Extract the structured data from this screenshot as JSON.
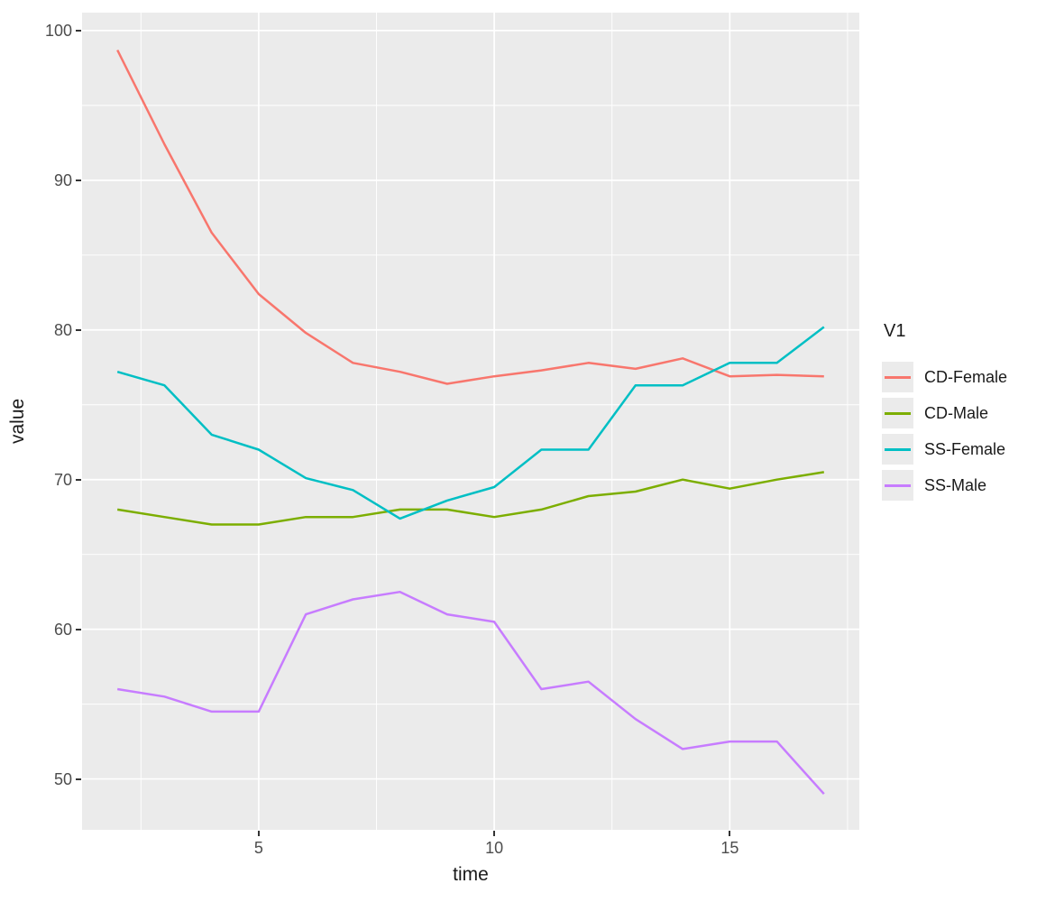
{
  "figure": {
    "background": "#FFFFFF",
    "panel_background": "#EBEBEB",
    "grid_color": "#FFFFFF",
    "axis_text_color": "#4D4D4D",
    "axis_title_color": "#1A1A1A",
    "tick_mark_color": "#333333"
  },
  "chart_data": {
    "type": "line",
    "title": "",
    "xlabel": "time",
    "ylabel": "value",
    "grid": true,
    "legend": {
      "title": "V1",
      "position": "right"
    },
    "x": [
      2,
      3,
      4,
      5,
      6,
      7,
      8,
      9,
      10,
      11,
      12,
      13,
      14,
      15,
      16,
      17
    ],
    "xlim": [
      1.25,
      17.75
    ],
    "ylim": [
      46.6,
      101.2
    ],
    "x_major_ticks": [
      5,
      10,
      15
    ],
    "x_minor_ticks": [
      2.5,
      7.5,
      12.5,
      17.5
    ],
    "y_major_ticks": [
      50,
      60,
      70,
      80,
      90,
      100
    ],
    "y_minor_ticks": [
      55,
      65,
      75,
      85,
      95
    ],
    "series": [
      {
        "name": "CD-Female",
        "color": "#F8766D",
        "values": [
          98.7,
          92.4,
          86.5,
          82.4,
          79.8,
          77.8,
          77.2,
          76.4,
          76.9,
          77.3,
          77.8,
          77.4,
          78.1,
          76.9,
          77.0,
          76.9
        ]
      },
      {
        "name": "CD-Male",
        "color": "#7CAE00",
        "values": [
          68.0,
          67.5,
          67.0,
          67.0,
          67.5,
          67.5,
          68.0,
          68.0,
          67.5,
          68.0,
          68.9,
          69.2,
          70.0,
          69.4,
          70.0,
          70.5
        ]
      },
      {
        "name": "SS-Female",
        "color": "#00BFC4",
        "values": [
          77.2,
          76.3,
          73.0,
          72.0,
          70.1,
          69.3,
          67.4,
          68.6,
          69.5,
          72.0,
          72.0,
          76.3,
          76.3,
          77.8,
          77.8,
          80.2
        ]
      },
      {
        "name": "SS-Male",
        "color": "#C77CFF",
        "values": [
          56.0,
          55.5,
          54.5,
          54.5,
          61.0,
          62.0,
          62.5,
          61.0,
          60.5,
          56.0,
          56.5,
          54.0,
          52.0,
          52.5,
          52.5,
          49.0
        ]
      }
    ]
  }
}
